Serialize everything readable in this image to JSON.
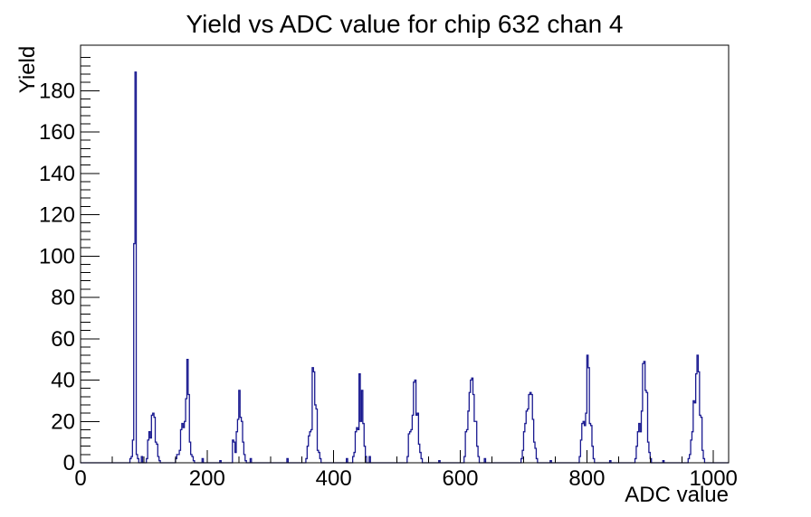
{
  "canvas": {
    "background": "#ffffff",
    "frame_color": "#000000"
  },
  "chart_data": {
    "type": "bar",
    "title": "Yield vs ADC value for chip 632 chan 4",
    "xlabel": "ADC value",
    "ylabel": "Yield",
    "xlim": [
      0,
      1024
    ],
    "ylim": [
      0,
      202
    ],
    "grid": false,
    "legend": "none",
    "x_major_ticks": [
      0,
      200,
      400,
      600,
      800,
      1000
    ],
    "x_minor_step": 50,
    "y_major_ticks": [
      0,
      20,
      40,
      60,
      80,
      100,
      120,
      140,
      160,
      180
    ],
    "y_minor_step": 4,
    "bin_width": 2,
    "line_color": "#191990",
    "bins": [
      [
        78,
        2
      ],
      [
        80,
        3
      ],
      [
        82,
        11
      ],
      [
        84,
        106
      ],
      [
        86,
        189
      ],
      [
        88,
        4
      ],
      [
        90,
        2
      ],
      [
        96,
        3
      ],
      [
        104,
        2
      ],
      [
        106,
        11
      ],
      [
        108,
        15
      ],
      [
        110,
        12
      ],
      [
        112,
        23
      ],
      [
        114,
        24
      ],
      [
        116,
        22
      ],
      [
        118,
        10
      ],
      [
        120,
        9
      ],
      [
        122,
        3
      ],
      [
        124,
        1
      ],
      [
        150,
        2
      ],
      [
        152,
        4
      ],
      [
        154,
        4
      ],
      [
        156,
        6
      ],
      [
        158,
        16
      ],
      [
        160,
        19
      ],
      [
        162,
        17
      ],
      [
        164,
        20
      ],
      [
        166,
        31
      ],
      [
        168,
        50
      ],
      [
        170,
        33
      ],
      [
        172,
        10
      ],
      [
        174,
        4
      ],
      [
        176,
        3
      ],
      [
        178,
        1
      ],
      [
        192,
        2
      ],
      [
        220,
        1
      ],
      [
        240,
        11
      ],
      [
        242,
        10
      ],
      [
        244,
        5
      ],
      [
        246,
        15
      ],
      [
        248,
        21
      ],
      [
        250,
        35
      ],
      [
        252,
        22
      ],
      [
        254,
        20
      ],
      [
        256,
        10
      ],
      [
        258,
        4
      ],
      [
        260,
        1
      ],
      [
        268,
        2
      ],
      [
        326,
        2
      ],
      [
        356,
        2
      ],
      [
        358,
        8
      ],
      [
        360,
        13
      ],
      [
        362,
        15
      ],
      [
        364,
        16
      ],
      [
        366,
        46
      ],
      [
        368,
        44
      ],
      [
        370,
        28
      ],
      [
        372,
        26
      ],
      [
        374,
        6
      ],
      [
        376,
        5
      ],
      [
        378,
        2
      ],
      [
        420,
        2
      ],
      [
        430,
        3
      ],
      [
        432,
        5
      ],
      [
        434,
        15
      ],
      [
        436,
        17
      ],
      [
        438,
        16
      ],
      [
        440,
        43
      ],
      [
        442,
        20
      ],
      [
        444,
        35
      ],
      [
        446,
        19
      ],
      [
        448,
        8
      ],
      [
        450,
        3
      ],
      [
        456,
        3
      ],
      [
        516,
        3
      ],
      [
        518,
        14
      ],
      [
        520,
        15
      ],
      [
        522,
        16
      ],
      [
        524,
        23
      ],
      [
        526,
        39
      ],
      [
        528,
        40
      ],
      [
        530,
        23
      ],
      [
        532,
        24
      ],
      [
        534,
        9
      ],
      [
        536,
        5
      ],
      [
        538,
        2
      ],
      [
        566,
        1
      ],
      [
        606,
        3
      ],
      [
        608,
        15
      ],
      [
        610,
        16
      ],
      [
        612,
        25
      ],
      [
        614,
        34
      ],
      [
        616,
        40
      ],
      [
        618,
        41
      ],
      [
        620,
        33
      ],
      [
        622,
        20
      ],
      [
        624,
        20
      ],
      [
        626,
        8
      ],
      [
        628,
        3
      ],
      [
        638,
        2
      ],
      [
        696,
        2
      ],
      [
        698,
        6
      ],
      [
        700,
        15
      ],
      [
        702,
        19
      ],
      [
        704,
        25
      ],
      [
        706,
        26
      ],
      [
        708,
        33
      ],
      [
        710,
        34
      ],
      [
        712,
        33
      ],
      [
        714,
        21
      ],
      [
        716,
        10
      ],
      [
        718,
        7
      ],
      [
        720,
        2
      ],
      [
        742,
        1
      ],
      [
        788,
        3
      ],
      [
        790,
        11
      ],
      [
        792,
        19
      ],
      [
        794,
        20
      ],
      [
        796,
        18
      ],
      [
        798,
        24
      ],
      [
        800,
        52
      ],
      [
        802,
        46
      ],
      [
        804,
        19
      ],
      [
        806,
        18
      ],
      [
        808,
        8
      ],
      [
        810,
        2
      ],
      [
        836,
        1
      ],
      [
        876,
        2
      ],
      [
        878,
        8
      ],
      [
        880,
        15
      ],
      [
        882,
        19
      ],
      [
        884,
        15
      ],
      [
        886,
        25
      ],
      [
        888,
        48
      ],
      [
        890,
        49
      ],
      [
        892,
        35
      ],
      [
        894,
        34
      ],
      [
        896,
        10
      ],
      [
        898,
        5
      ],
      [
        900,
        2
      ],
      [
        920,
        1
      ],
      [
        960,
        2
      ],
      [
        962,
        4
      ],
      [
        964,
        11
      ],
      [
        966,
        15
      ],
      [
        968,
        30
      ],
      [
        970,
        29
      ],
      [
        972,
        43
      ],
      [
        974,
        52
      ],
      [
        976,
        44
      ],
      [
        978,
        23
      ],
      [
        980,
        22
      ],
      [
        982,
        6
      ],
      [
        984,
        2
      ]
    ]
  }
}
